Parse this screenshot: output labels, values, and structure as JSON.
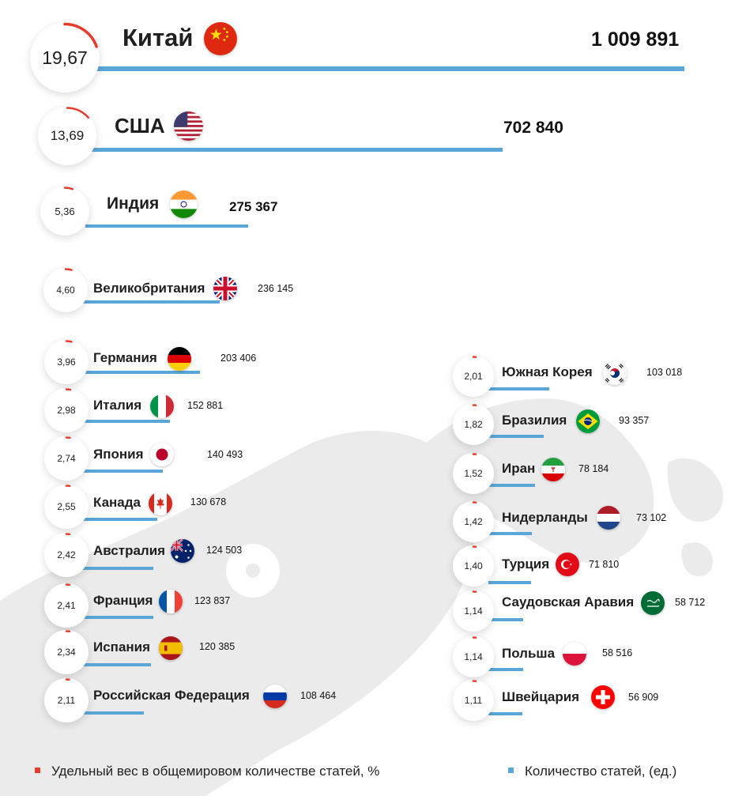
{
  "chart_data": {
    "type": "bar",
    "legend": [
      {
        "label": "Удельный вес в общемировом количестве статей, %",
        "color": "#e63c2e"
      },
      {
        "label": "Количество статей, (ед.)",
        "color": "#5ba6d8"
      }
    ],
    "colors": {
      "bar": "#5ba6d8",
      "share_arc": "#e63c2e"
    },
    "countries": [
      {
        "name": "Китай",
        "share": "19,67",
        "articles": 1009891,
        "articles_label": "1 009 891",
        "flag": "china-flag"
      },
      {
        "name": "США",
        "share": "13,69",
        "articles": 702840,
        "articles_label": "702 840",
        "flag": "usa-flag"
      },
      {
        "name": "Индия",
        "share": "5,36",
        "articles": 275367,
        "articles_label": "275 367",
        "flag": "india-flag"
      },
      {
        "name": "Великобритания",
        "share": "4,60",
        "articles": 236145,
        "articles_label": "236 145",
        "flag": "uk-flag"
      },
      {
        "name": "Германия",
        "share": "3,96",
        "articles": 203406,
        "articles_label": "203 406",
        "flag": "germany-flag"
      },
      {
        "name": "Италия",
        "share": "2,98",
        "articles": 152881,
        "articles_label": "152 881",
        "flag": "italy-flag"
      },
      {
        "name": "Япония",
        "share": "2,74",
        "articles": 140493,
        "articles_label": "140 493",
        "flag": "japan-flag"
      },
      {
        "name": "Канада",
        "share": "2,55",
        "articles": 130678,
        "articles_label": "130 678",
        "flag": "canada-flag"
      },
      {
        "name": "Австралия",
        "share": "2,42",
        "articles": 124503,
        "articles_label": "124 503",
        "flag": "australia-flag"
      },
      {
        "name": "Франция",
        "share": "2,41",
        "articles": 123837,
        "articles_label": "123 837",
        "flag": "france-flag"
      },
      {
        "name": "Испания",
        "share": "2,34",
        "articles": 120385,
        "articles_label": "120 385",
        "flag": "spain-flag"
      },
      {
        "name": "Российская Федерация",
        "share": "2,11",
        "articles": 108464,
        "articles_label": "108 464",
        "flag": "russia-flag"
      },
      {
        "name": "Южная Корея",
        "share": "2,01",
        "articles": 103018,
        "articles_label": "103 018",
        "flag": "south-korea-flag"
      },
      {
        "name": "Бразилия",
        "share": "1,82",
        "articles": 93357,
        "articles_label": "93 357",
        "flag": "brazil-flag"
      },
      {
        "name": "Иран",
        "share": "1,52",
        "articles": 78184,
        "articles_label": "78 184",
        "flag": "iran-flag"
      },
      {
        "name": "Нидерланды",
        "share": "1,42",
        "articles": 73102,
        "articles_label": "73 102",
        "flag": "netherlands-flag"
      },
      {
        "name": "Турция",
        "share": "1,40",
        "articles": 71810,
        "articles_label": "71 810",
        "flag": "turkey-flag"
      },
      {
        "name": "Саудовская Аравия",
        "share": "1,14",
        "articles": 58712,
        "articles_label": "58 712",
        "flag": "saudi-arabia-flag"
      },
      {
        "name": "Польша",
        "share": "1,14",
        "articles": 58516,
        "articles_label": "58 516",
        "flag": "poland-flag"
      },
      {
        "name": "Швейцария",
        "share": "1,11",
        "articles": 56909,
        "articles_label": "56 909",
        "flag": "switzerland-flag"
      }
    ]
  }
}
